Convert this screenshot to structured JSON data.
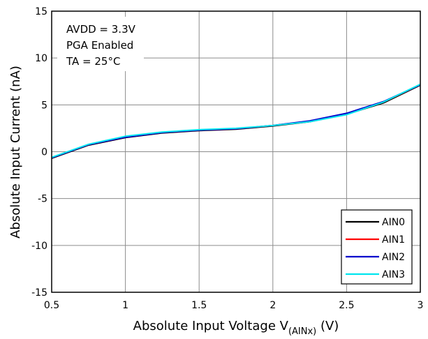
{
  "chart_data": {
    "type": "line",
    "xlabel_main": "Absolute Input Voltage V",
    "xlabel_sub": "(AINx)",
    "xlabel_unit": " (V)",
    "ylabel": "Absolute Input Current (nA)",
    "xlim": [
      0.5,
      3
    ],
    "ylim": [
      -15,
      15
    ],
    "xticks": [
      "0.5",
      "1",
      "1.5",
      "2",
      "2.5",
      "3"
    ],
    "yticks": [
      "15",
      "10",
      "5",
      "0",
      "-5",
      "-10",
      "-15"
    ],
    "grid": true,
    "legend_position": "bottom-right",
    "annotations": [
      "AVDD = 3.3V",
      "PGA Enabled",
      "TA = 25°C"
    ],
    "x": [
      0.5,
      0.75,
      1.0,
      1.25,
      1.5,
      1.75,
      2.0,
      2.25,
      2.5,
      2.75,
      3.0
    ],
    "series": [
      {
        "name": "AIN0",
        "color": "#000000",
        "values": [
          -0.7,
          0.7,
          1.5,
          2.0,
          2.25,
          2.4,
          2.75,
          3.2,
          4.0,
          5.2,
          7.1
        ]
      },
      {
        "name": "AIN1",
        "color": "#ff0000",
        "values": [
          -0.65,
          0.75,
          1.55,
          2.05,
          2.3,
          2.45,
          2.8,
          3.25,
          4.05,
          5.3,
          7.15
        ]
      },
      {
        "name": "AIN2",
        "color": "#0000cc",
        "values": [
          -0.65,
          0.75,
          1.55,
          2.05,
          2.3,
          2.45,
          2.8,
          3.3,
          4.1,
          5.35,
          7.15
        ]
      },
      {
        "name": "AIN3",
        "color": "#00e5ee",
        "values": [
          -0.6,
          0.8,
          1.65,
          2.1,
          2.35,
          2.5,
          2.8,
          3.2,
          3.95,
          5.3,
          7.2
        ]
      }
    ]
  }
}
